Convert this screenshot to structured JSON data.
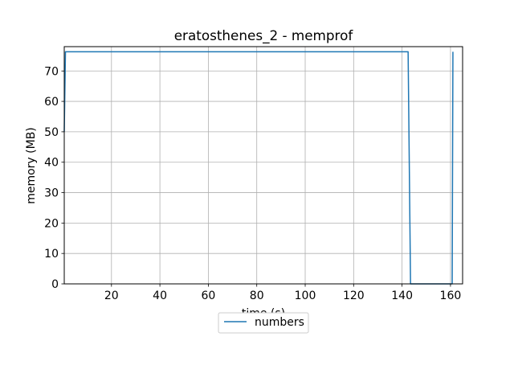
{
  "chart_data": {
    "type": "line",
    "title": "eratosthenes_2 - memprof",
    "xlabel": "time (s)",
    "ylabel": "memory (MB)",
    "xlim": [
      0.5,
      165
    ],
    "ylim": [
      0,
      78
    ],
    "xticks": [
      20,
      40,
      60,
      80,
      100,
      120,
      140,
      160
    ],
    "yticks": [
      0,
      10,
      20,
      30,
      40,
      50,
      60,
      70
    ],
    "grid": true,
    "legend_placement": "below chart, centered",
    "series": [
      {
        "name": "numbers",
        "color": "#1f77b4",
        "x": [
          0.5,
          1.0,
          142.5,
          143.5,
          160.7,
          161.0
        ],
        "y": [
          50,
          76.3,
          76.3,
          0,
          0,
          76.3
        ]
      }
    ]
  },
  "style": {
    "grid_color": "#b0b0b0",
    "axis_color": "#000000"
  }
}
